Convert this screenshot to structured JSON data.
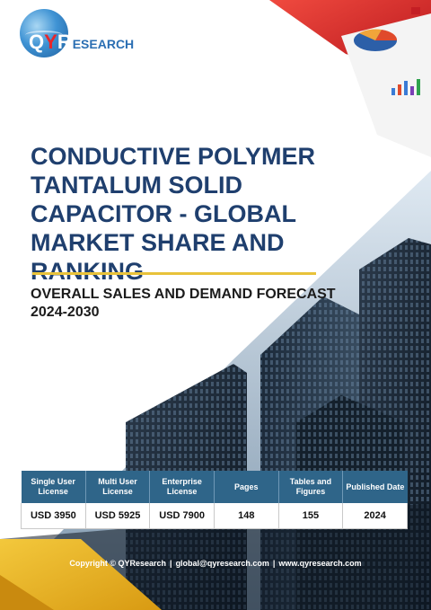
{
  "logo": {
    "q": "Q",
    "y": "Y",
    "r": "R",
    "rest": "ESEARCH"
  },
  "report": {
    "title": "CONDUCTIVE POLYMER TANTALUM SOLID CAPACITOR - GLOBAL MARKET SHARE AND RANKING",
    "subtitle": "OVERALL SALES AND DEMAND FORECAST 2024-2030"
  },
  "table": {
    "headers": [
      "Single User License",
      "Multi User License",
      "Enterprise License",
      "Pages",
      "Tables and Figures",
      "Published Date"
    ],
    "values": [
      "USD 3950",
      "USD 5925",
      "USD 7900",
      "148",
      "155",
      "2024"
    ]
  },
  "footer": {
    "copyright": "Copyright © QYResearch",
    "email": "global@qyresearch.com",
    "website": "www.qyresearch.com",
    "separator": "|"
  },
  "colors": {
    "title": "#1f3f6e",
    "accent_rule": "#e8c23a",
    "table_header": "#2f6589",
    "brand_red": "#e8262a",
    "brand_blue": "#2b6fb3"
  }
}
